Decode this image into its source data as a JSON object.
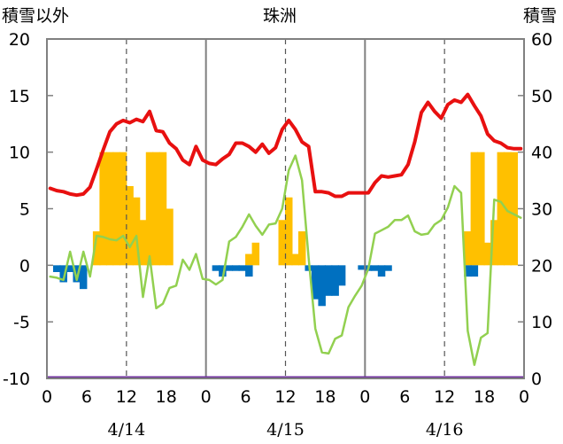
{
  "chart_data": {
    "type": "bar",
    "title": "珠洲",
    "left_axis_label": "積雪以外",
    "right_axis_label": "積雪",
    "ylim_left": [
      -10,
      20
    ],
    "ylim_right": [
      0,
      60
    ],
    "yticks_left": [
      "20",
      "15",
      "10",
      "5",
      "0",
      "-5",
      "-10"
    ],
    "yticks_right": [
      "60",
      "50",
      "40",
      "30",
      "20",
      "10",
      "0"
    ],
    "x_range_hours": [
      0,
      72
    ],
    "xtick_hours": [
      0,
      6,
      12,
      18,
      24,
      30,
      36,
      42,
      48,
      54,
      60,
      66,
      72
    ],
    "xtick_labels": [
      "0",
      "6",
      "12",
      "18",
      "0",
      "6",
      "12",
      "18",
      "0",
      "6",
      "12",
      "18",
      "0"
    ],
    "day_labels": [
      {
        "text": "4/14",
        "hour": 12
      },
      {
        "text": "4/15",
        "hour": 36
      },
      {
        "text": "4/16",
        "hour": 60
      }
    ],
    "grid": {
      "day_dividers": [
        24,
        48
      ],
      "dashed_hours": [
        12,
        36,
        60
      ]
    },
    "colors": {
      "temperature": "#e81010",
      "snow_depth": "#92d050",
      "precipitation": "#ffc000",
      "sunshine": "#0070c0",
      "baseline": "#7030a0",
      "frame": "#808080"
    },
    "series": [
      {
        "key": "temperature",
        "axis": "left",
        "x": [
          0,
          1,
          2,
          3,
          4,
          5,
          6,
          7,
          8,
          9,
          10,
          11,
          12,
          13,
          14,
          15,
          16,
          17,
          18,
          19,
          20,
          21,
          22,
          23,
          24,
          25,
          26,
          27,
          28,
          29,
          30,
          31,
          32,
          33,
          34,
          35,
          36,
          37,
          38,
          39,
          40,
          41,
          42,
          43,
          44,
          45,
          46,
          47,
          48,
          49,
          50,
          51,
          52,
          53,
          54,
          55,
          56,
          57,
          58,
          59,
          60,
          61,
          62,
          63,
          64,
          65,
          66,
          67,
          68,
          69,
          70,
          71
        ],
        "values": [
          6.8,
          6.6,
          6.5,
          6.3,
          6.2,
          6.3,
          6.9,
          8.5,
          10.2,
          11.8,
          12.5,
          12.8,
          12.6,
          12.9,
          12.7,
          13.6,
          11.9,
          11.8,
          10.8,
          10.3,
          9.3,
          8.9,
          10.5,
          9.3,
          9.0,
          8.9,
          9.4,
          9.8,
          10.8,
          10.8,
          10.5,
          10.0,
          10.7,
          9.9,
          10.4,
          12.0,
          12.8,
          12.0,
          10.9,
          10.5,
          6.5,
          6.5,
          6.4,
          6.1,
          6.1,
          6.4,
          6.4,
          6.4,
          6.4,
          7.3,
          7.9,
          7.8,
          7.9,
          8.0,
          8.9,
          10.9,
          13.5,
          14.4,
          13.6,
          13.0,
          14.2,
          14.6,
          14.4,
          15.1,
          14.1,
          13.2,
          11.6,
          11.0,
          10.8,
          10.4,
          10.3,
          10.3
        ]
      },
      {
        "key": "snow_depth",
        "axis": "left",
        "x": [
          0,
          1,
          2,
          3,
          4,
          5,
          6,
          7,
          8,
          9,
          10,
          11,
          12,
          13,
          14,
          15,
          16,
          17,
          18,
          19,
          20,
          21,
          22,
          23,
          24,
          25,
          26,
          27,
          28,
          29,
          30,
          31,
          32,
          33,
          34,
          35,
          36,
          37,
          38,
          39,
          40,
          41,
          42,
          43,
          44,
          45,
          46,
          47,
          48,
          49,
          50,
          51,
          52,
          53,
          54,
          55,
          56,
          57,
          58,
          59,
          60,
          61,
          62,
          63,
          64,
          65,
          66,
          67,
          68,
          69,
          70,
          71
        ],
        "values": [
          -1.0,
          -1.1,
          -1.3,
          1.2,
          -1.3,
          1.2,
          -1.0,
          2.6,
          2.5,
          2.3,
          2.2,
          2.6,
          1.6,
          2.6,
          -2.8,
          0.8,
          -3.8,
          -3.4,
          -2.0,
          -1.8,
          0.5,
          -0.4,
          1.0,
          -1.2,
          -1.3,
          -1.7,
          -1.3,
          2.1,
          2.5,
          3.4,
          4.5,
          3.5,
          2.7,
          3.6,
          3.7,
          5.0,
          8.4,
          9.7,
          7.5,
          0.6,
          -5.6,
          -7.7,
          -7.8,
          -6.5,
          -6.2,
          -3.7,
          -2.7,
          -1.8,
          -0.3,
          2.8,
          3.1,
          3.4,
          4.0,
          4.0,
          4.4,
          3.0,
          2.7,
          2.8,
          3.6,
          4.0,
          5.1,
          7.0,
          6.4,
          -5.8,
          -8.8,
          -6.4,
          -6.0,
          5.8,
          5.6,
          4.8,
          4.5,
          4.2
        ]
      }
    ],
    "bars": [
      {
        "key": "precipitation",
        "axis": "left",
        "x": [
          7,
          8,
          9,
          10,
          11,
          12,
          13,
          14,
          15,
          16,
          17,
          18,
          30,
          31,
          35,
          36,
          37,
          38,
          63,
          64,
          65,
          66,
          67,
          68,
          69,
          70
        ],
        "values": [
          3,
          10,
          10,
          10,
          10,
          7,
          6,
          4,
          10,
          10,
          10,
          5,
          1,
          2,
          4,
          6,
          1,
          3,
          3,
          10,
          10,
          2,
          4,
          10,
          10,
          10
        ]
      },
      {
        "key": "sunshine",
        "axis": "left",
        "x": [
          1,
          2,
          3,
          4,
          5,
          25,
          26,
          27,
          28,
          29,
          30,
          39,
          40,
          41,
          42,
          43,
          44,
          47,
          48,
          49,
          50,
          51,
          63,
          64
        ],
        "values": [
          -0.6,
          -1.5,
          -0.6,
          -1.5,
          -2.1,
          -0.5,
          -1.0,
          -0.5,
          -0.5,
          -0.5,
          -1.0,
          -0.5,
          -3.0,
          -3.6,
          -2.7,
          -2.7,
          -1.8,
          -0.4,
          -0.5,
          -0.5,
          -1.0,
          -0.5,
          -1.0,
          -1.0
        ]
      }
    ]
  }
}
